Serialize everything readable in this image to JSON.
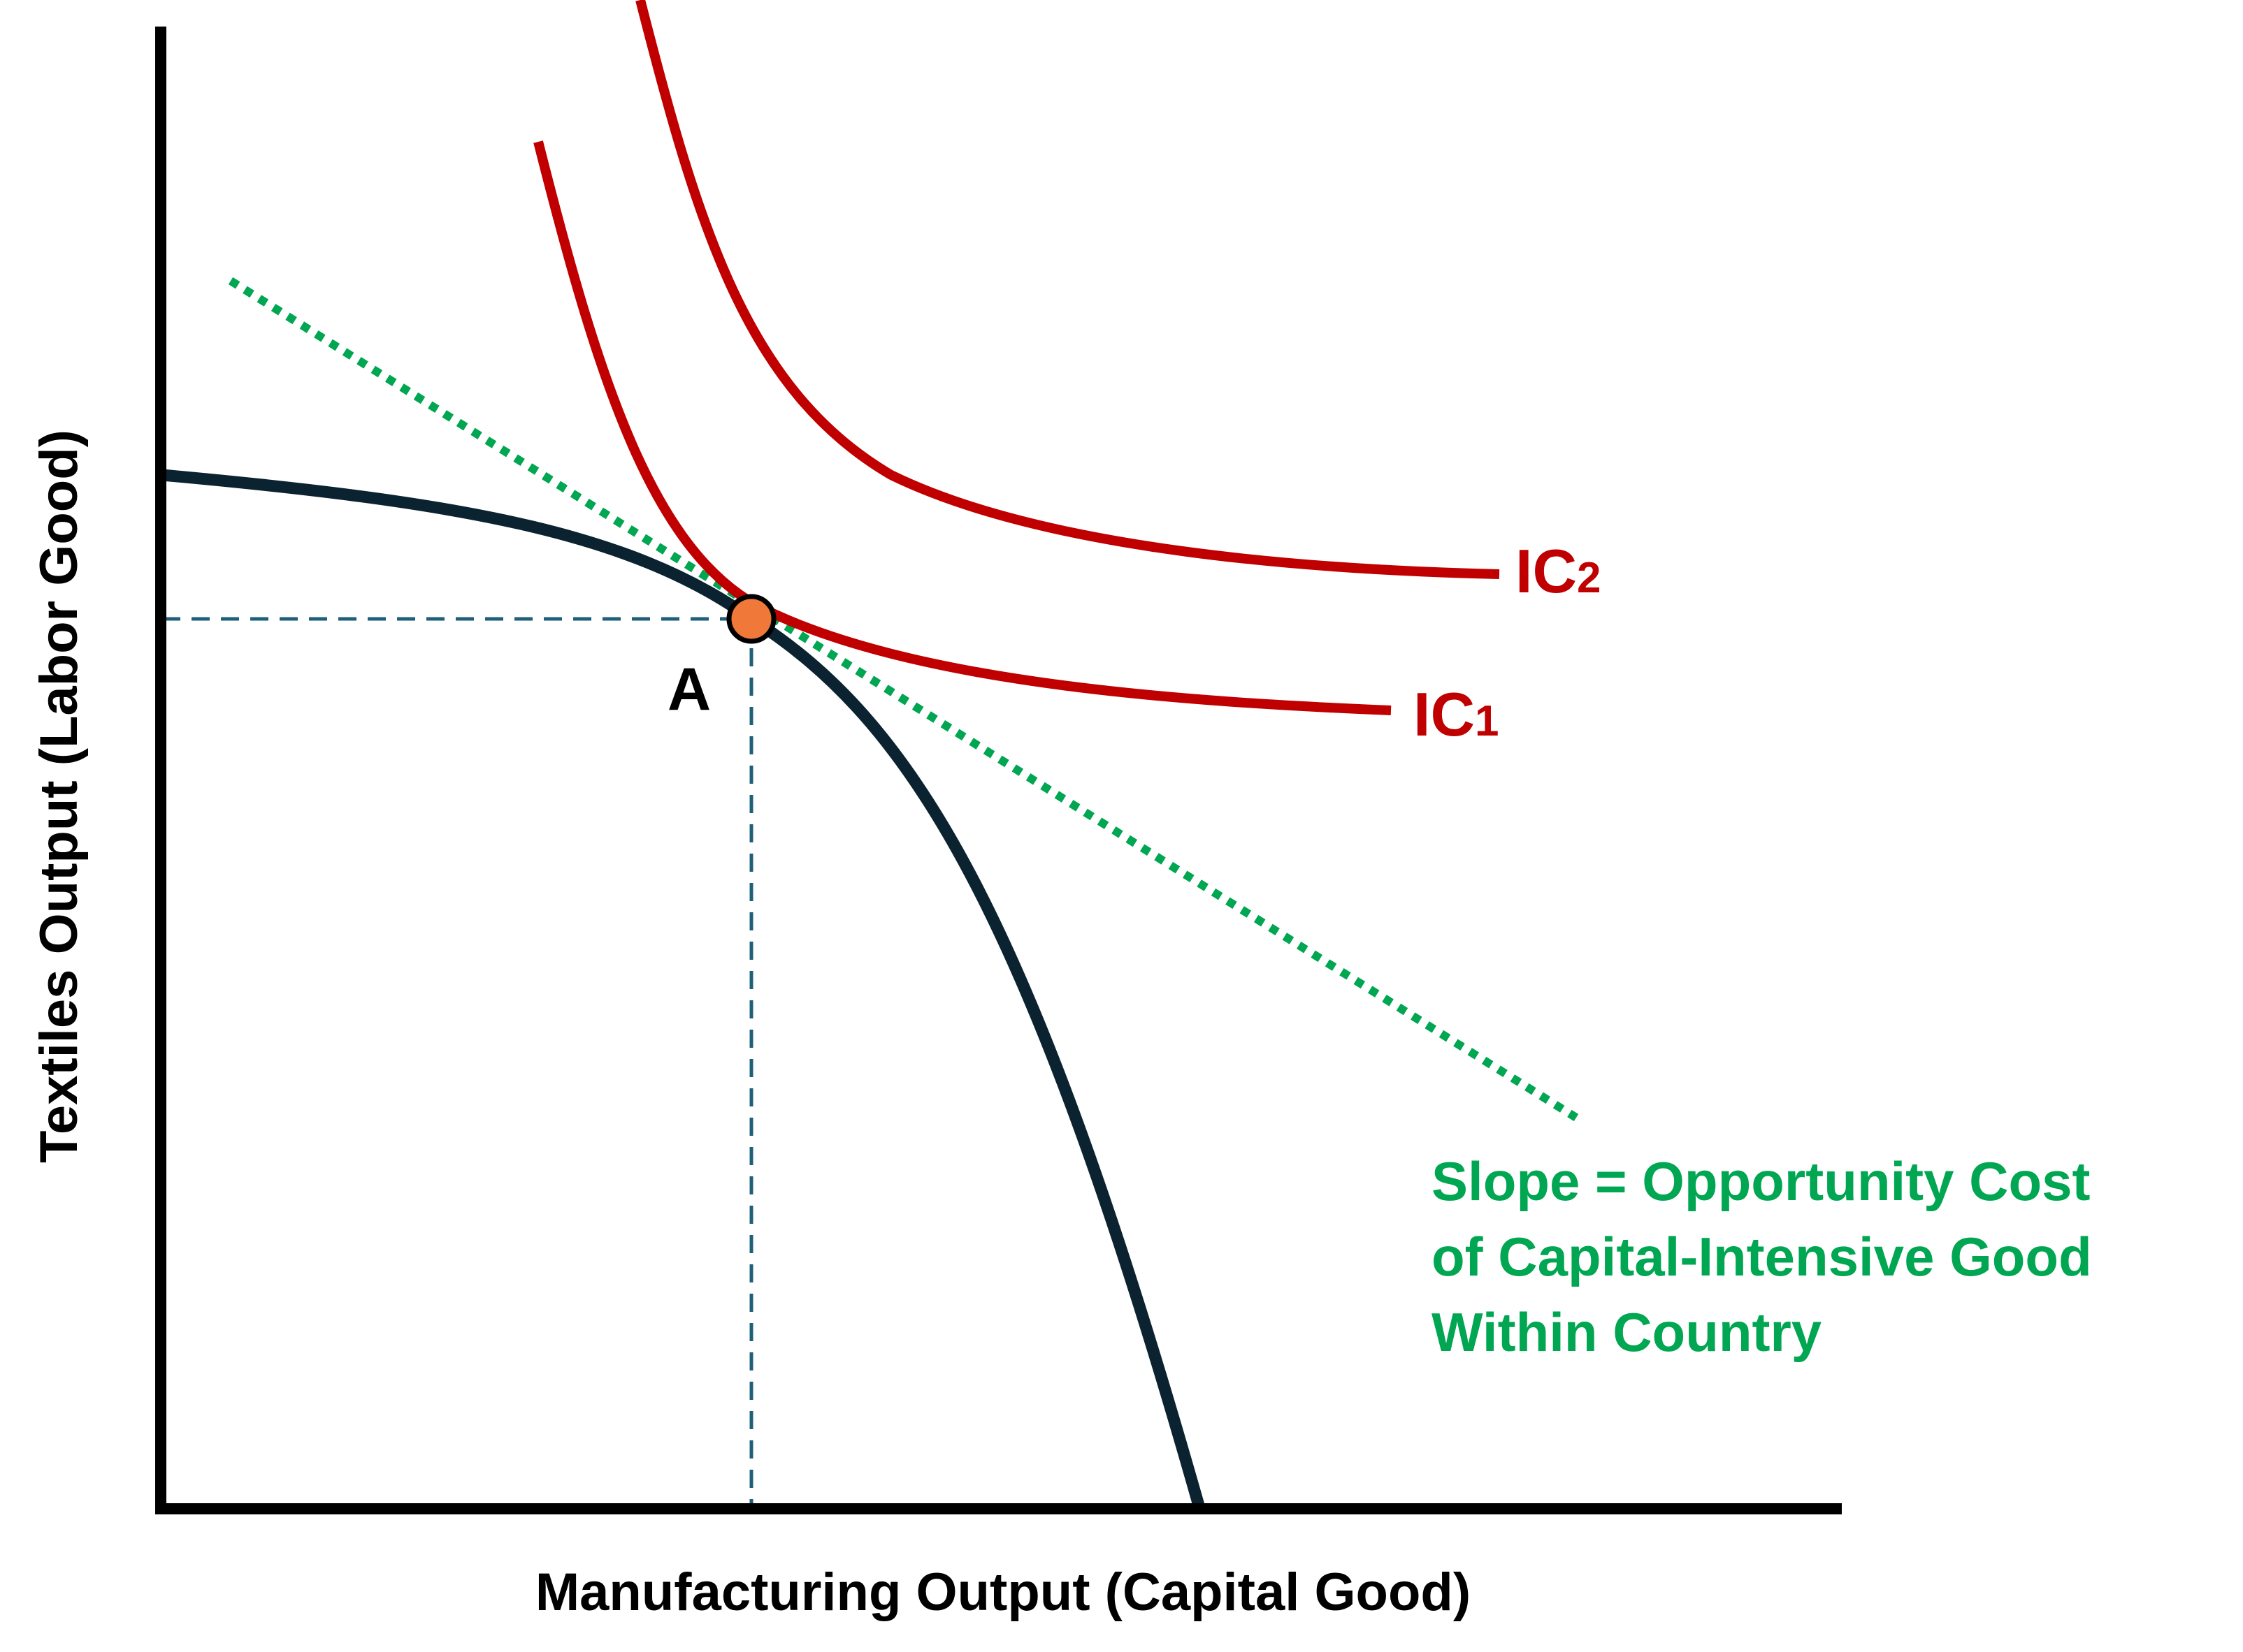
{
  "axes": {
    "x_label": "Manufacturing Output (Capital Good)",
    "y_label": "Textiles Output (Labor Good)"
  },
  "curves": {
    "ppf": {
      "color": "#0b2230"
    },
    "ic1": {
      "label_main": "IC",
      "label_sub": "1",
      "color": "#c00000"
    },
    "ic2": {
      "label_main": "IC",
      "label_sub": "2",
      "color": "#c00000"
    }
  },
  "tangent_line": {
    "color": "#00a651"
  },
  "point_a": {
    "label": "A",
    "color": "#f07838"
  },
  "guide_lines": {
    "color": "#1f5f7a"
  },
  "slope_annotation": {
    "color": "#00a651",
    "lines": [
      "Slope = Opportunity Cost",
      "of Capital-Intensive Good",
      "Within Country"
    ]
  }
}
